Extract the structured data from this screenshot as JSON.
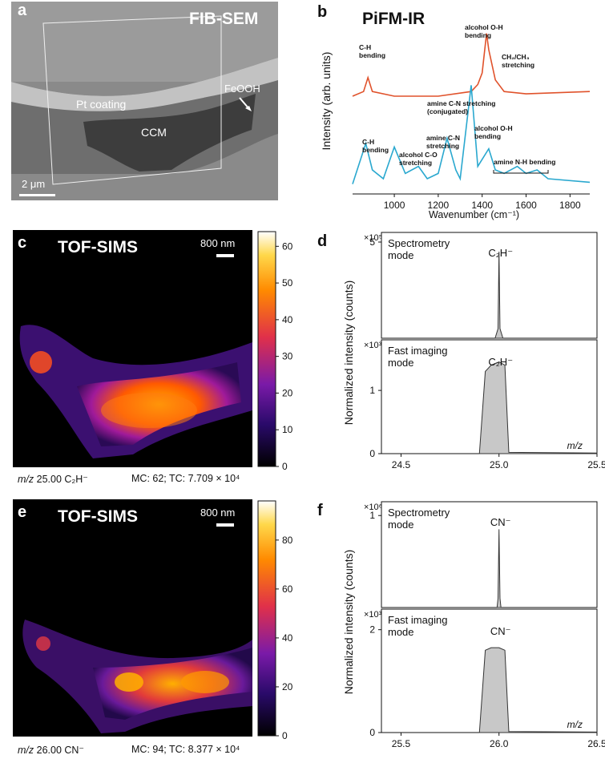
{
  "panels": {
    "a": {
      "label": "a",
      "title": "FIB-SEM",
      "annotations": {
        "pt": "Pt coating",
        "ccm": "CCM",
        "feooh": "FeOOH"
      },
      "scale_bar": "2 μm"
    },
    "b": {
      "label": "b",
      "title": "PiFM-IR",
      "ylabel": "Intensity (arb. units)",
      "xlabel": "Wavenumber (cm⁻¹)",
      "annotations": {
        "orange_ch": "C-H\nbending",
        "orange_oh": "alcohol O-H\nbending",
        "orange_ch2": "CH₂/CH₃\nstretching",
        "blue_ch": "C-H\nbending",
        "blue_co": "alcohol C-O\nstretching",
        "blue_cn": "amine C-N\nstretching",
        "blue_cnconj": "amine C-N stretching\n(conjugated)",
        "blue_oh": "alcohol O-H\nbending",
        "blue_nh": "amine N-H bending"
      }
    },
    "c": {
      "label": "c",
      "title": "TOF-SIMS",
      "scale_bar": "800 nm",
      "colorbar_ticks": [
        "0",
        "10",
        "20",
        "30",
        "40",
        "50",
        "60"
      ],
      "caption_mz": "m/z",
      "caption_ion": "25.00 C₂H⁻",
      "caption_stats": "MC: 62; TC: 7.709 × 10⁴"
    },
    "d": {
      "label": "d",
      "ylabel": "Normalized intensity (counts)",
      "top": {
        "mode": "Spectrometry\nmode",
        "mult": "×10⁵",
        "peak": "C₂H⁻",
        "tick": "5"
      },
      "bottom": {
        "mode": "Fast imaging\nmode",
        "mult": "×10³",
        "peak": "C₂H⁻",
        "ticks": [
          "0",
          "1"
        ]
      },
      "xticks": [
        "24.5",
        "25.0",
        "25.5"
      ],
      "xlabel": "m/z"
    },
    "e": {
      "label": "e",
      "title": "TOF-SIMS",
      "scale_bar": "800 nm",
      "colorbar_ticks": [
        "0",
        "20",
        "40",
        "60",
        "80"
      ],
      "caption_mz": "m/z",
      "caption_ion": "26.00 CN⁻",
      "caption_stats": "MC: 94; TC: 8.377 × 10⁴"
    },
    "f": {
      "label": "f",
      "top": {
        "mode": "Spectrometry\nmode",
        "mult": "×10⁶",
        "peak": "CN⁻",
        "tick": "1"
      },
      "bottom": {
        "mode": "Fast imaging\nmode",
        "mult": "×10³",
        "peak": "CN⁻",
        "ticks": [
          "0",
          "2"
        ]
      },
      "ylabel": "Normalized intensity (counts)",
      "xticks": [
        "25.5",
        "26.0",
        "26.5"
      ],
      "xlabel": "m/z"
    }
  },
  "chart_data": [
    {
      "type": "line",
      "panel": "b",
      "title": "PiFM-IR",
      "xlabel": "Wavenumber (cm⁻¹)",
      "ylabel": "Intensity (arb. units)",
      "xlim": [
        810,
        1890
      ],
      "xticks": [
        1000,
        1200,
        1400,
        1600,
        1800
      ],
      "series": [
        {
          "color": "#e0522b",
          "x": [
            810,
            860,
            880,
            900,
            1000,
            1200,
            1350,
            1380,
            1400,
            1420,
            1430,
            1460,
            1500,
            1600,
            1890
          ],
          "y": [
            0.78,
            0.8,
            0.86,
            0.8,
            0.78,
            0.78,
            0.8,
            0.83,
            0.88,
            1.05,
            0.98,
            0.85,
            0.8,
            0.79,
            0.8
          ]
        },
        {
          "color": "#2aa8cf",
          "x": [
            810,
            870,
            900,
            950,
            1000,
            1050,
            1110,
            1150,
            1200,
            1240,
            1280,
            1300,
            1350,
            1380,
            1430,
            1460,
            1500,
            1560,
            1600,
            1650,
            1700,
            1890
          ],
          "y": [
            0.02,
            0.25,
            0.1,
            0.05,
            0.23,
            0.08,
            0.12,
            0.05,
            0.08,
            0.28,
            0.1,
            0.05,
            0.58,
            0.12,
            0.22,
            0.1,
            0.08,
            0.12,
            0.08,
            0.1,
            0.05,
            0.03
          ]
        }
      ]
    },
    {
      "type": "area",
      "panel": "d",
      "xlim": [
        24.4,
        25.5
      ],
      "xticks": [
        24.5,
        25.0,
        25.5
      ],
      "subplots": [
        {
          "mode": "Spectrometry mode",
          "ylim": [
            0,
            5.5
          ],
          "scale": "×10⁵",
          "peak_label": "C₂H⁻",
          "x": [
            24.98,
            24.995,
            25.0,
            25.005,
            25.02
          ],
          "y": [
            0,
            0.5,
            4.5,
            0.5,
            0
          ]
        },
        {
          "mode": "Fast imaging mode",
          "ylim": [
            0,
            1.8
          ],
          "scale": "×10³",
          "peak_label": "C₂H⁻",
          "x": [
            24.9,
            24.93,
            24.96,
            25.0,
            25.03,
            25.05,
            25.5
          ],
          "y": [
            0,
            1.3,
            1.4,
            1.45,
            1.4,
            0.02,
            0.01
          ]
        }
      ]
    },
    {
      "type": "area",
      "panel": "f",
      "xlim": [
        25.4,
        26.5
      ],
      "xticks": [
        25.5,
        26.0,
        26.5
      ],
      "subplots": [
        {
          "mode": "Spectrometry mode",
          "ylim": [
            0,
            1.15
          ],
          "scale": "×10⁶",
          "peak_label": "CN⁻",
          "x": [
            25.99,
            25.995,
            26.0,
            26.005,
            26.01
          ],
          "y": [
            0,
            0.1,
            0.85,
            0.1,
            0
          ]
        },
        {
          "mode": "Fast imaging mode",
          "ylim": [
            0,
            2.4
          ],
          "scale": "×10³",
          "peak_label": "CN⁻",
          "x": [
            25.9,
            25.93,
            25.96,
            26.0,
            26.03,
            26.05,
            26.5
          ],
          "y": [
            0,
            1.6,
            1.65,
            1.65,
            1.6,
            0.02,
            0.01
          ]
        }
      ]
    }
  ]
}
